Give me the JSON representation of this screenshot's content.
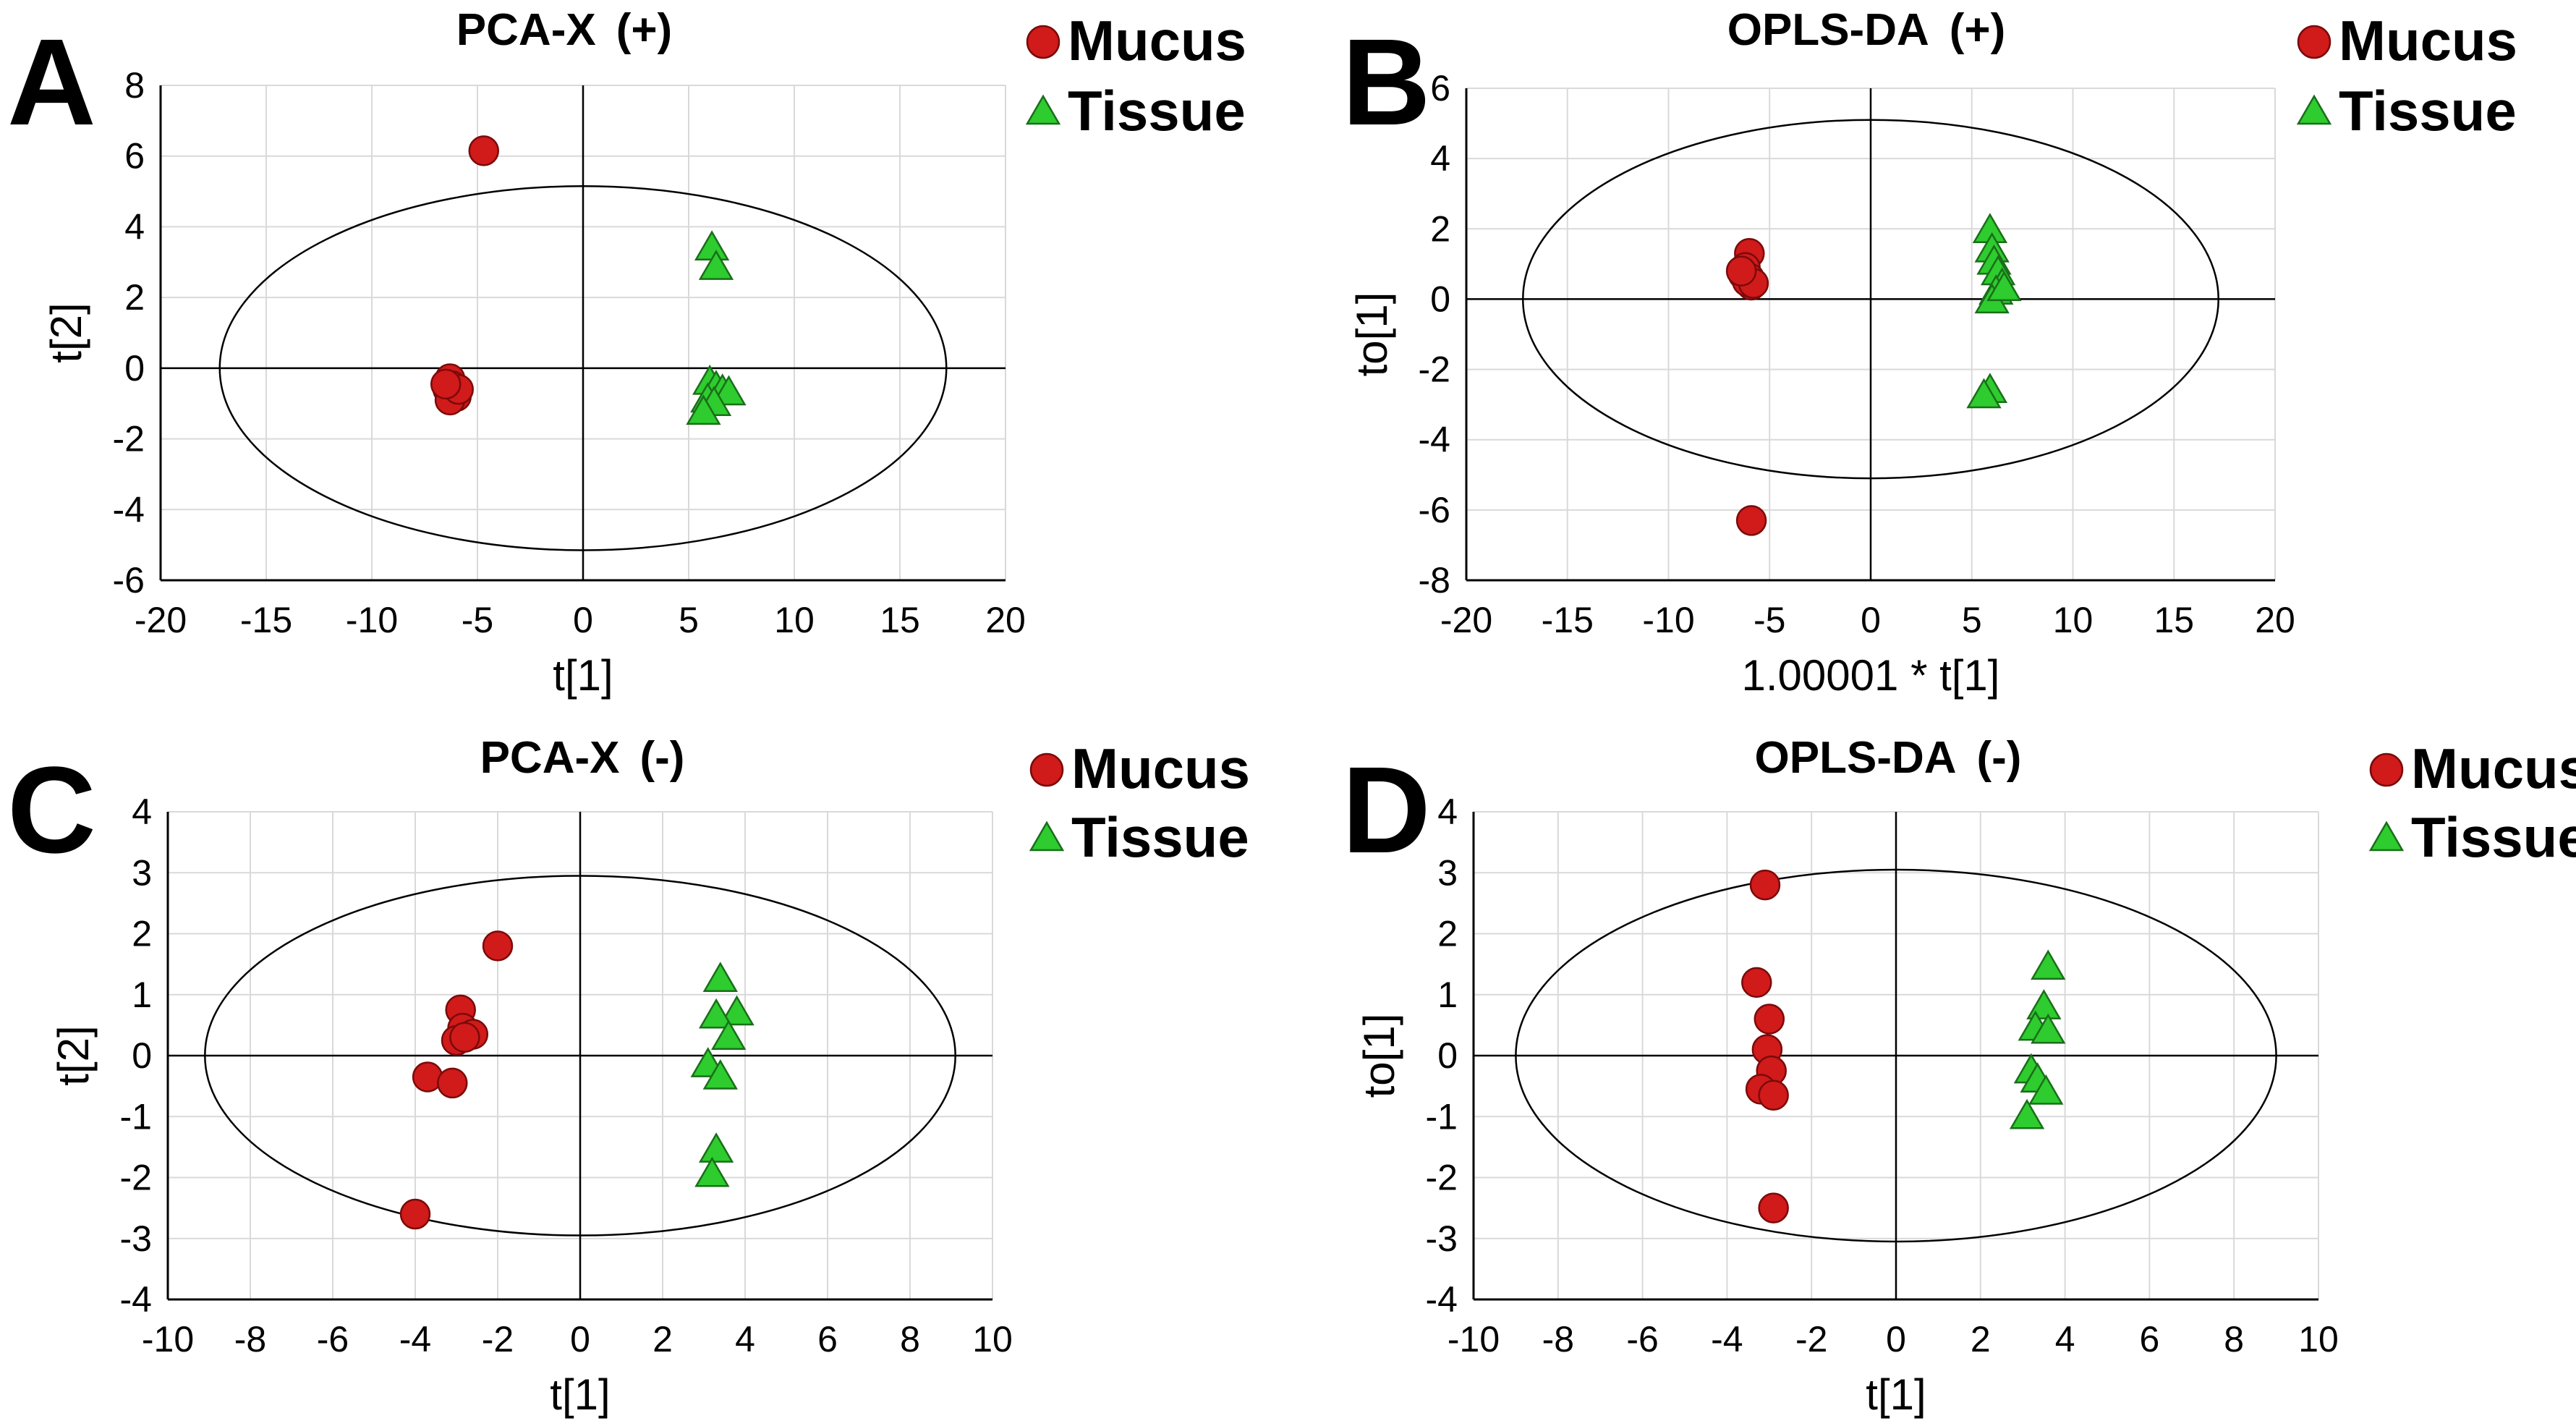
{
  "colors": {
    "mucus": "#d11a1a",
    "tissue": "#2ecc2e",
    "grid": "#d9d9d9",
    "axis": "#000000"
  },
  "legend": {
    "mucus": "Mucus",
    "tissue": "Tissue"
  },
  "chart_data": [
    {
      "id": "A",
      "panel_label": "A",
      "type": "scatter",
      "title": "PCA-X",
      "title_suffix": "(+)",
      "xlabel": "t[1]",
      "ylabel": "t[2]",
      "xlim": [
        -20,
        20
      ],
      "ylim": [
        -6,
        8
      ],
      "xstep": 5,
      "ystep": 2,
      "ellipse": {
        "cx": 0,
        "cy": 0,
        "rx": 17.2,
        "ry": 5.15
      },
      "series": [
        {
          "name": "Mucus",
          "marker": "circle",
          "points": [
            [
              -4.7,
              6.15
            ],
            [
              -6.3,
              -0.3
            ],
            [
              -6.2,
              -0.5
            ],
            [
              -6.4,
              -0.6
            ],
            [
              -6.1,
              -0.7
            ],
            [
              -6.0,
              -0.8
            ],
            [
              -6.3,
              -0.9
            ],
            [
              -5.9,
              -0.6
            ],
            [
              -6.5,
              -0.45
            ]
          ]
        },
        {
          "name": "Tissue",
          "marker": "triangle",
          "points": [
            [
              6.1,
              3.4
            ],
            [
              6.3,
              2.85
            ],
            [
              6.0,
              -0.4
            ],
            [
              6.3,
              -0.55
            ],
            [
              6.6,
              -0.65
            ],
            [
              6.9,
              -0.7
            ],
            [
              5.9,
              -0.9
            ],
            [
              6.2,
              -1.0
            ],
            [
              5.7,
              -1.25
            ]
          ]
        }
      ]
    },
    {
      "id": "B",
      "panel_label": "B",
      "type": "scatter",
      "title": "OPLS-DA",
      "title_suffix": "(+)",
      "xlabel": "1.00001 * t[1]",
      "ylabel": "to[1]",
      "xlim": [
        -20,
        20
      ],
      "ylim": [
        -8,
        6
      ],
      "xstep": 5,
      "ystep": 2,
      "ellipse": {
        "cx": 0,
        "cy": 0,
        "rx": 17.2,
        "ry": 5.1
      },
      "series": [
        {
          "name": "Mucus",
          "marker": "circle",
          "points": [
            [
              -6.0,
              1.3
            ],
            [
              -6.2,
              0.9
            ],
            [
              -6.3,
              0.7
            ],
            [
              -6.0,
              0.6
            ],
            [
              -5.9,
              0.4
            ],
            [
              -6.1,
              0.5
            ],
            [
              -5.8,
              0.45
            ],
            [
              -6.4,
              0.8
            ],
            [
              -5.9,
              -6.3
            ]
          ]
        },
        {
          "name": "Tissue",
          "marker": "triangle",
          "points": [
            [
              5.9,
              1.95
            ],
            [
              6.0,
              1.4
            ],
            [
              6.1,
              1.05
            ],
            [
              6.3,
              0.75
            ],
            [
              6.5,
              0.4
            ],
            [
              6.2,
              0.2
            ],
            [
              6.0,
              -0.05
            ],
            [
              6.6,
              0.3
            ],
            [
              5.9,
              -2.6
            ],
            [
              5.6,
              -2.75
            ]
          ]
        }
      ]
    },
    {
      "id": "C",
      "panel_label": "C",
      "type": "scatter",
      "title": "PCA-X",
      "title_suffix": "(-)",
      "xlabel": "t[1]",
      "ylabel": "t[2]",
      "xlim": [
        -10,
        10
      ],
      "ylim": [
        -4,
        4
      ],
      "xstep": 2,
      "ystep": 1,
      "ellipse": {
        "cx": 0,
        "cy": 0,
        "rx": 9.1,
        "ry": 2.95
      },
      "series": [
        {
          "name": "Mucus",
          "marker": "circle",
          "points": [
            [
              -2.0,
              1.8
            ],
            [
              -2.9,
              0.75
            ],
            [
              -2.85,
              0.45
            ],
            [
              -2.6,
              0.35
            ],
            [
              -3.0,
              0.25
            ],
            [
              -2.8,
              0.3
            ],
            [
              -3.7,
              -0.35
            ],
            [
              -3.1,
              -0.45
            ],
            [
              -4.0,
              -2.6
            ]
          ]
        },
        {
          "name": "Tissue",
          "marker": "triangle",
          "points": [
            [
              3.4,
              1.25
            ],
            [
              3.8,
              0.7
            ],
            [
              3.3,
              0.65
            ],
            [
              3.6,
              0.3
            ],
            [
              3.1,
              -0.15
            ],
            [
              3.4,
              -0.35
            ],
            [
              3.3,
              -1.55
            ],
            [
              3.2,
              -1.95
            ]
          ]
        }
      ]
    },
    {
      "id": "D",
      "panel_label": "D",
      "type": "scatter",
      "title": "OPLS-DA",
      "title_suffix": "(-)",
      "xlabel": "t[1]",
      "ylabel": "to[1]",
      "xlim": [
        -10,
        10
      ],
      "ylim": [
        -4,
        4
      ],
      "xstep": 2,
      "ystep": 1,
      "ellipse": {
        "cx": 0,
        "cy": 0,
        "rx": 9.0,
        "ry": 3.05
      },
      "series": [
        {
          "name": "Mucus",
          "marker": "circle",
          "points": [
            [
              -3.1,
              2.8
            ],
            [
              -3.3,
              1.2
            ],
            [
              -3.0,
              0.6
            ],
            [
              -3.05,
              0.1
            ],
            [
              -2.95,
              -0.25
            ],
            [
              -3.2,
              -0.55
            ],
            [
              -2.9,
              -0.65
            ],
            [
              -2.9,
              -2.5
            ]
          ]
        },
        {
          "name": "Tissue",
          "marker": "triangle",
          "points": [
            [
              3.6,
              1.45
            ],
            [
              3.5,
              0.8
            ],
            [
              3.3,
              0.45
            ],
            [
              3.6,
              0.4
            ],
            [
              3.2,
              -0.25
            ],
            [
              3.35,
              -0.4
            ],
            [
              3.55,
              -0.6
            ],
            [
              3.1,
              -1.0
            ]
          ]
        }
      ]
    }
  ]
}
